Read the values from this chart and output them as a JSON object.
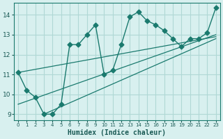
{
  "x": [
    0,
    1,
    2,
    3,
    4,
    5,
    6,
    7,
    8,
    9,
    10,
    11,
    12,
    13,
    14,
    15,
    16,
    17,
    18,
    19,
    20,
    21,
    22,
    23
  ],
  "y": [
    11.1,
    10.2,
    9.85,
    9.0,
    9.0,
    9.5,
    12.5,
    12.5,
    13.0,
    13.5,
    11.0,
    11.2,
    12.5,
    13.9,
    14.15,
    13.7,
    13.5,
    13.2,
    12.8,
    12.4,
    12.8,
    12.8,
    13.1,
    14.35
  ],
  "line_color": "#1a7a6e",
  "marker": "D",
  "marker_size": 3.5,
  "bg_color": "#d8f0ef",
  "grid_color": "#b0d8d5",
  "xlabel": "Humidex (Indice chaleur)",
  "ylabel": "",
  "title": "",
  "xlim": [
    -0.5,
    23.5
  ],
  "ylim": [
    8.7,
    14.6
  ],
  "yticks": [
    9,
    10,
    11,
    12,
    13,
    14
  ],
  "xtick_labels": [
    "0",
    "1",
    "2",
    "3",
    "4",
    "5",
    "6",
    "7",
    "8",
    "9",
    "10",
    "11",
    "12",
    "13",
    "14",
    "15",
    "16",
    "17",
    "18",
    "19",
    "20",
    "21",
    "22",
    "23"
  ],
  "trend1_x": [
    0,
    23
  ],
  "trend1_y": [
    11.1,
    12.9
  ],
  "trend2_x": [
    0,
    23
  ],
  "trend2_y": [
    9.5,
    13.0
  ],
  "trend3_x": [
    3,
    23
  ],
  "trend3_y": [
    9.0,
    12.8
  ]
}
